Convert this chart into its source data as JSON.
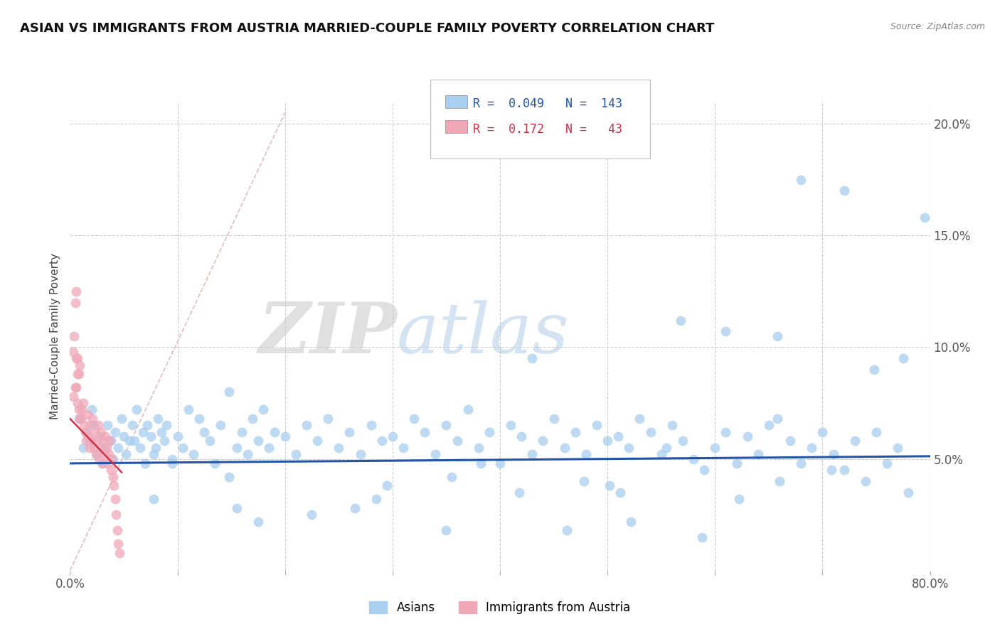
{
  "title": "ASIAN VS IMMIGRANTS FROM AUSTRIA MARRIED-COUPLE FAMILY POVERTY CORRELATION CHART",
  "source": "Source: ZipAtlas.com",
  "ylabel": "Married-Couple Family Poverty",
  "watermark_zip": "ZIP",
  "watermark_atlas": "atlas",
  "legend_r_asian": "0.049",
  "legend_n_asian": "143",
  "legend_r_austria": "0.172",
  "legend_n_austria": "43",
  "color_asian": "#a8cef0",
  "color_austria": "#f0a8b8",
  "color_line_asian": "#2255aa",
  "color_line_austria": "#cc3344",
  "color_diagonal": "#ddaaaa",
  "xlim": [
    0.0,
    0.8
  ],
  "ylim": [
    0.0,
    0.21
  ],
  "asian_x": [
    0.008,
    0.012,
    0.015,
    0.018,
    0.02,
    0.022,
    0.025,
    0.028,
    0.03,
    0.032,
    0.035,
    0.038,
    0.04,
    0.042,
    0.045,
    0.048,
    0.05,
    0.052,
    0.055,
    0.058,
    0.06,
    0.062,
    0.065,
    0.068,
    0.07,
    0.072,
    0.075,
    0.078,
    0.08,
    0.082,
    0.085,
    0.088,
    0.09,
    0.095,
    0.1,
    0.105,
    0.11,
    0.115,
    0.12,
    0.125,
    0.13,
    0.135,
    0.14,
    0.148,
    0.155,
    0.16,
    0.165,
    0.17,
    0.175,
    0.18,
    0.185,
    0.19,
    0.2,
    0.21,
    0.22,
    0.23,
    0.24,
    0.25,
    0.26,
    0.27,
    0.28,
    0.29,
    0.3,
    0.31,
    0.32,
    0.33,
    0.34,
    0.35,
    0.36,
    0.37,
    0.38,
    0.39,
    0.4,
    0.41,
    0.42,
    0.43,
    0.44,
    0.45,
    0.46,
    0.47,
    0.48,
    0.49,
    0.5,
    0.51,
    0.52,
    0.53,
    0.54,
    0.55,
    0.56,
    0.57,
    0.58,
    0.59,
    0.6,
    0.61,
    0.62,
    0.63,
    0.64,
    0.65,
    0.66,
    0.67,
    0.68,
    0.69,
    0.7,
    0.71,
    0.72,
    0.73,
    0.74,
    0.75,
    0.76,
    0.77,
    0.78,
    0.568,
    0.61,
    0.658,
    0.68,
    0.72,
    0.748,
    0.775,
    0.795,
    0.43,
    0.355,
    0.295,
    0.478,
    0.512,
    0.382,
    0.622,
    0.658,
    0.708,
    0.502,
    0.555,
    0.265,
    0.225,
    0.175,
    0.285,
    0.35,
    0.418,
    0.095,
    0.148,
    0.155,
    0.078,
    0.462,
    0.522,
    0.588
  ],
  "asian_y": [
    0.068,
    0.055,
    0.062,
    0.058,
    0.072,
    0.065,
    0.052,
    0.06,
    0.048,
    0.055,
    0.065,
    0.058,
    0.05,
    0.062,
    0.055,
    0.068,
    0.06,
    0.052,
    0.058,
    0.065,
    0.058,
    0.072,
    0.055,
    0.062,
    0.048,
    0.065,
    0.06,
    0.052,
    0.055,
    0.068,
    0.062,
    0.058,
    0.065,
    0.048,
    0.06,
    0.055,
    0.072,
    0.052,
    0.068,
    0.062,
    0.058,
    0.048,
    0.065,
    0.08,
    0.055,
    0.062,
    0.052,
    0.068,
    0.058,
    0.072,
    0.055,
    0.062,
    0.06,
    0.052,
    0.065,
    0.058,
    0.068,
    0.055,
    0.062,
    0.052,
    0.065,
    0.058,
    0.06,
    0.055,
    0.068,
    0.062,
    0.052,
    0.065,
    0.058,
    0.072,
    0.055,
    0.062,
    0.048,
    0.065,
    0.06,
    0.052,
    0.058,
    0.068,
    0.055,
    0.062,
    0.052,
    0.065,
    0.058,
    0.06,
    0.055,
    0.068,
    0.062,
    0.052,
    0.065,
    0.058,
    0.05,
    0.045,
    0.055,
    0.062,
    0.048,
    0.06,
    0.052,
    0.065,
    0.04,
    0.058,
    0.048,
    0.055,
    0.062,
    0.052,
    0.045,
    0.058,
    0.04,
    0.062,
    0.048,
    0.055,
    0.035,
    0.112,
    0.107,
    0.105,
    0.175,
    0.17,
    0.09,
    0.095,
    0.158,
    0.095,
    0.042,
    0.038,
    0.04,
    0.035,
    0.048,
    0.032,
    0.068,
    0.045,
    0.038,
    0.055,
    0.028,
    0.025,
    0.022,
    0.032,
    0.018,
    0.035,
    0.05,
    0.042,
    0.028,
    0.032,
    0.018,
    0.022,
    0.015
  ],
  "austria_x": [
    0.003,
    0.005,
    0.006,
    0.007,
    0.008,
    0.009,
    0.01,
    0.011,
    0.012,
    0.013,
    0.014,
    0.015,
    0.016,
    0.017,
    0.018,
    0.019,
    0.02,
    0.021,
    0.022,
    0.023,
    0.024,
    0.025,
    0.026,
    0.027,
    0.028,
    0.029,
    0.03,
    0.031,
    0.032,
    0.033,
    0.034,
    0.035,
    0.036,
    0.037,
    0.038,
    0.039,
    0.04,
    0.041,
    0.042,
    0.043,
    0.044,
    0.045,
    0.046
  ],
  "austria_y": [
    0.078,
    0.082,
    0.095,
    0.075,
    0.088,
    0.092,
    0.068,
    0.072,
    0.075,
    0.065,
    0.062,
    0.058,
    0.07,
    0.06,
    0.055,
    0.065,
    0.058,
    0.068,
    0.055,
    0.062,
    0.052,
    0.058,
    0.065,
    0.05,
    0.055,
    0.062,
    0.048,
    0.058,
    0.052,
    0.06,
    0.055,
    0.048,
    0.052,
    0.058,
    0.045,
    0.05,
    0.042,
    0.038,
    0.032,
    0.025,
    0.018,
    0.012,
    0.008
  ],
  "austria_high_x": [
    0.003,
    0.004,
    0.005,
    0.006,
    0.007,
    0.007,
    0.006,
    0.008,
    0.009
  ],
  "austria_high_y": [
    0.098,
    0.105,
    0.12,
    0.125,
    0.095,
    0.088,
    0.082,
    0.072,
    0.068
  ]
}
